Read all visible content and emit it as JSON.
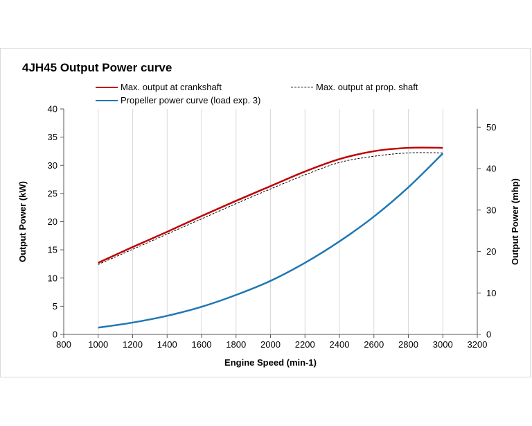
{
  "chart_data": {
    "type": "line",
    "title": "4JH45 Output Power curve",
    "xlabel": "Engine Speed (min-1)",
    "ylabel": "Output Power (kW)",
    "y2label": "Output Power (mhp)",
    "xlim": [
      800,
      3200
    ],
    "xticks": [
      800,
      1000,
      1200,
      1400,
      1600,
      1800,
      2000,
      2200,
      2400,
      2600,
      2800,
      3000,
      3200
    ],
    "ylim": [
      0,
      40
    ],
    "yticks": [
      0,
      5,
      10,
      15,
      20,
      25,
      30,
      35,
      40
    ],
    "y2lim": [
      0,
      54.4
    ],
    "y2ticks": [
      0,
      10,
      20,
      30,
      40,
      50
    ],
    "grid": "vertical",
    "legend_position": "top",
    "series": [
      {
        "name": "Max. output at crankshaft",
        "color": "#c00000",
        "style": "solid",
        "x": [
          1000,
          1200,
          1400,
          1600,
          1800,
          2000,
          2200,
          2400,
          2600,
          2800,
          3000
        ],
        "y": [
          12.7,
          15.5,
          18.2,
          21.0,
          23.7,
          26.3,
          28.9,
          31.1,
          32.5,
          33.1,
          33.1
        ]
      },
      {
        "name": "Max. output at prop. shaft",
        "color": "#000000",
        "style": "dashed",
        "x": [
          1000,
          1200,
          1400,
          1600,
          1800,
          2000,
          2200,
          2400,
          2600,
          2800,
          3000
        ],
        "y": [
          12.4,
          15.1,
          17.8,
          20.5,
          23.2,
          25.8,
          28.3,
          30.5,
          31.6,
          32.2,
          32.2
        ]
      },
      {
        "name": "Propeller power curve (load exp. 3)",
        "color": "#1f77b4",
        "style": "solid",
        "x": [
          1000,
          1200,
          1400,
          1600,
          1800,
          2000,
          2200,
          2400,
          2600,
          2800,
          3000
        ],
        "y": [
          1.2,
          2.1,
          3.3,
          4.9,
          7.0,
          9.5,
          12.7,
          16.5,
          20.9,
          26.1,
          32.1
        ]
      }
    ]
  }
}
